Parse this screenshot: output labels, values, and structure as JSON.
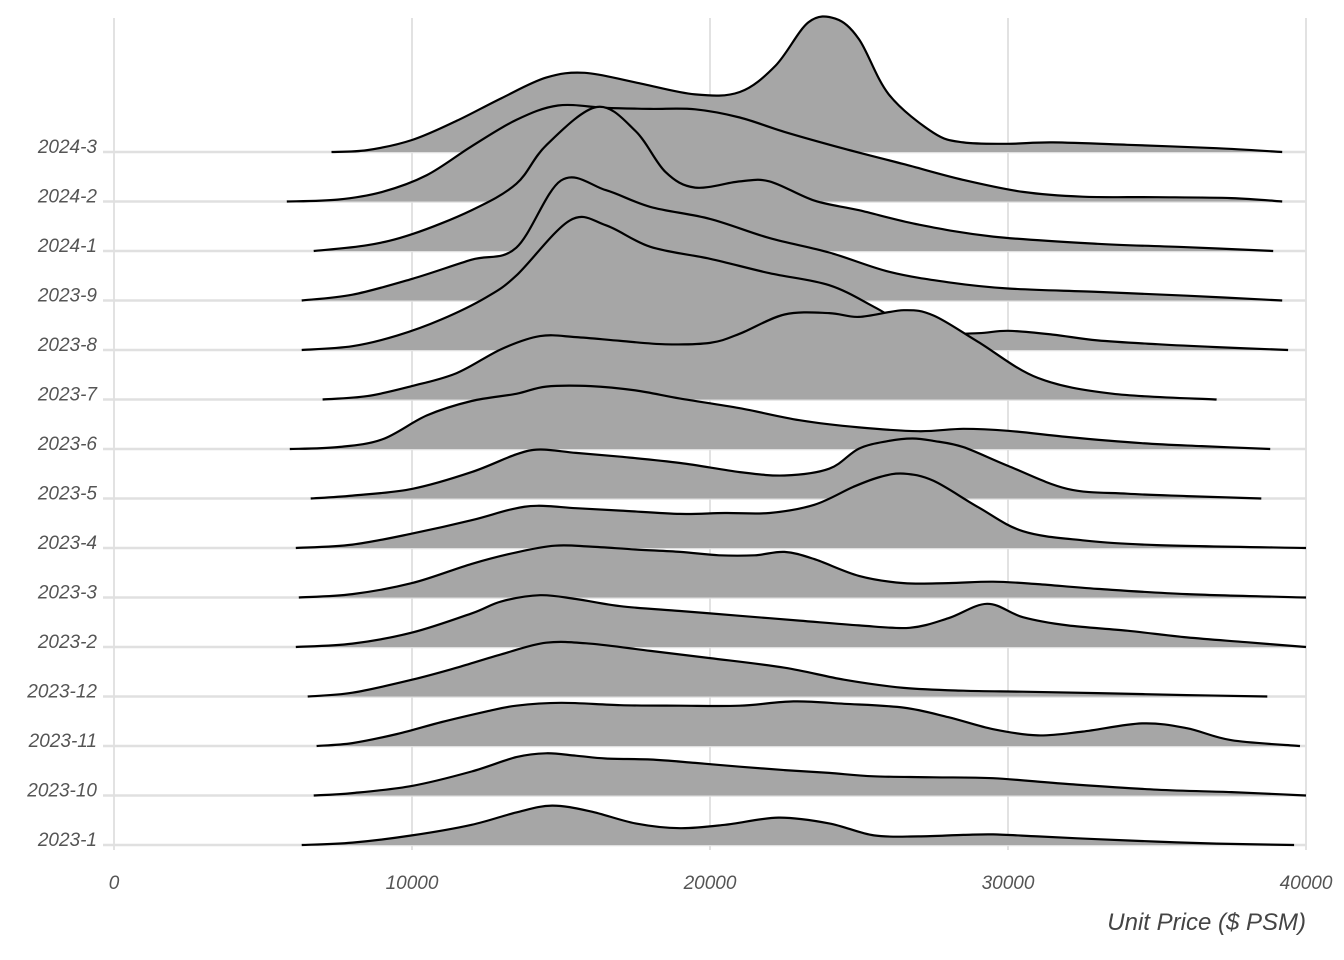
{
  "chart_data": {
    "type": "area",
    "subtype": "ridgeline",
    "title": "",
    "xlabel": "Unit Price ($ PSM)",
    "ylabel": "",
    "xlim": [
      0,
      40000
    ],
    "x_ticks": [
      0,
      10000,
      20000,
      30000,
      40000
    ],
    "grid": true,
    "legend": "none",
    "fill_color": "#a6a6a6",
    "line_color": "#000000",
    "categories": [
      "2023-1",
      "2023-10",
      "2023-11",
      "2023-12",
      "2023-2",
      "2023-3",
      "2023-4",
      "2023-5",
      "2023-6",
      "2023-7",
      "2023-8",
      "2023-9",
      "2024-1",
      "2024-2",
      "2024-3"
    ],
    "series": [
      {
        "name": "2023-1",
        "x": [
          6300,
          8000,
          10000,
          12000,
          13500,
          14700,
          16000,
          17500,
          19000,
          20500,
          22300,
          24000,
          25500,
          27000,
          28500,
          29500,
          31000,
          33000,
          35000,
          37000,
          39600
        ],
        "density": [
          0,
          0.05,
          0.2,
          0.42,
          0.68,
          0.82,
          0.7,
          0.45,
          0.35,
          0.42,
          0.57,
          0.45,
          0.2,
          0.18,
          0.21,
          0.22,
          0.18,
          0.12,
          0.07,
          0.03,
          0
        ]
      },
      {
        "name": "2023-10",
        "x": [
          6700,
          8000,
          10000,
          12000,
          13500,
          14500,
          15500,
          16500,
          18000,
          19500,
          21000,
          22500,
          24000,
          25500,
          27500,
          29500,
          32000,
          35000,
          37500,
          40000
        ],
        "density": [
          0,
          0.05,
          0.2,
          0.5,
          0.8,
          0.88,
          0.83,
          0.77,
          0.75,
          0.68,
          0.6,
          0.53,
          0.47,
          0.4,
          0.38,
          0.36,
          0.24,
          0.12,
          0.07,
          0
        ]
      },
      {
        "name": "2023-11",
        "x": [
          6800,
          8000,
          9500,
          11000,
          12500,
          13500,
          15000,
          17000,
          19000,
          21000,
          22800,
          24500,
          26500,
          28000,
          29500,
          31000,
          32500,
          34500,
          36000,
          37500,
          39800
        ],
        "density": [
          0,
          0.06,
          0.25,
          0.5,
          0.72,
          0.84,
          0.9,
          0.85,
          0.84,
          0.84,
          0.93,
          0.88,
          0.8,
          0.6,
          0.35,
          0.22,
          0.3,
          0.47,
          0.37,
          0.12,
          0
        ]
      },
      {
        "name": "2023-12",
        "x": [
          6500,
          8000,
          10000,
          11500,
          13000,
          14500,
          16000,
          18000,
          20000,
          22500,
          24500,
          26500,
          28500,
          30500,
          33000,
          36000,
          38700
        ],
        "density": [
          0,
          0.08,
          0.35,
          0.6,
          0.88,
          1.12,
          1.1,
          0.95,
          0.8,
          0.6,
          0.35,
          0.18,
          0.12,
          0.1,
          0.07,
          0.03,
          0
        ]
      },
      {
        "name": "2023-2",
        "x": [
          6100,
          8000,
          10000,
          12000,
          13000,
          14300,
          15500,
          17000,
          19000,
          21000,
          23000,
          25000,
          26700,
          28000,
          29300,
          30500,
          32000,
          34000,
          36000,
          38000,
          40000
        ],
        "density": [
          0,
          0.07,
          0.3,
          0.7,
          0.95,
          1.08,
          1.0,
          0.85,
          0.75,
          0.65,
          0.55,
          0.45,
          0.4,
          0.6,
          0.9,
          0.62,
          0.45,
          0.34,
          0.2,
          0.1,
          0
        ]
      },
      {
        "name": "2023-3",
        "x": [
          6200,
          8000,
          10000,
          12000,
          13500,
          14800,
          16000,
          17500,
          19000,
          20300,
          21500,
          22500,
          23500,
          25000,
          26500,
          28000,
          29500,
          31000,
          33000,
          36000,
          40000
        ],
        "density": [
          0,
          0.07,
          0.3,
          0.7,
          0.94,
          1.08,
          1.06,
          1.0,
          0.95,
          0.88,
          0.88,
          0.95,
          0.8,
          0.45,
          0.3,
          0.3,
          0.33,
          0.28,
          0.18,
          0.07,
          0
        ]
      },
      {
        "name": "2023-4",
        "x": [
          6100,
          8000,
          10000,
          12000,
          13300,
          14200,
          15500,
          17000,
          19000,
          20500,
          22000,
          23500,
          24800,
          25700,
          26500,
          27500,
          29000,
          30500,
          32500,
          35000,
          40000
        ],
        "density": [
          0,
          0.07,
          0.3,
          0.58,
          0.8,
          0.88,
          0.83,
          0.78,
          0.71,
          0.73,
          0.73,
          0.9,
          1.27,
          1.48,
          1.55,
          1.4,
          0.85,
          0.35,
          0.16,
          0.06,
          0
        ]
      },
      {
        "name": "2023-5",
        "x": [
          6600,
          8000,
          10000,
          12000,
          13500,
          14300,
          15500,
          17000,
          19000,
          21000,
          22500,
          24000,
          25000,
          26000,
          26800,
          27500,
          28500,
          30000,
          32000,
          34000,
          36000,
          38500
        ],
        "density": [
          0,
          0.06,
          0.2,
          0.55,
          0.92,
          1.02,
          0.95,
          0.87,
          0.74,
          0.55,
          0.48,
          0.62,
          1.04,
          1.2,
          1.25,
          1.2,
          1.07,
          0.68,
          0.2,
          0.1,
          0.05,
          0
        ]
      },
      {
        "name": "2023-6",
        "x": [
          5900,
          7500,
          9000,
          10500,
          12000,
          13500,
          14500,
          16000,
          17500,
          19000,
          21000,
          23000,
          25000,
          27000,
          28500,
          30000,
          32000,
          34500,
          36500,
          38800
        ],
        "density": [
          0,
          0.04,
          0.2,
          0.7,
          1.0,
          1.15,
          1.3,
          1.31,
          1.22,
          1.05,
          0.85,
          0.6,
          0.45,
          0.37,
          0.42,
          0.38,
          0.25,
          0.12,
          0.06,
          0
        ]
      },
      {
        "name": "2023-7",
        "x": [
          7000,
          8500,
          10000,
          11500,
          13000,
          14300,
          15500,
          17000,
          18500,
          20000,
          21000,
          22500,
          24000,
          25000,
          26500,
          27500,
          29000,
          31000,
          33500,
          37000
        ],
        "density": [
          0,
          0.07,
          0.28,
          0.55,
          1.05,
          1.32,
          1.3,
          1.22,
          1.15,
          1.18,
          1.37,
          1.77,
          1.8,
          1.72,
          1.86,
          1.75,
          1.2,
          0.45,
          0.12,
          0
        ]
      },
      {
        "name": "2023-8",
        "x": [
          6300,
          8000,
          9500,
          11000,
          12500,
          13500,
          15300,
          16500,
          18000,
          20000,
          22000,
          24000,
          25500,
          26500,
          27500,
          29000,
          30000,
          31500,
          33000,
          35000,
          37000,
          39400
        ],
        "density": [
          0,
          0.08,
          0.3,
          0.64,
          1.1,
          1.55,
          2.7,
          2.6,
          2.15,
          1.9,
          1.6,
          1.35,
          0.9,
          0.55,
          0.35,
          0.35,
          0.4,
          0.32,
          0.2,
          0.12,
          0.06,
          0
        ]
      },
      {
        "name": "2023-9",
        "x": [
          6300,
          8000,
          10000,
          12000,
          13500,
          15000,
          16500,
          18000,
          20000,
          22000,
          24000,
          26000,
          28000,
          30000,
          33000,
          36000,
          39200
        ],
        "density": [
          0,
          0.12,
          0.45,
          0.85,
          1.1,
          2.5,
          2.3,
          1.95,
          1.7,
          1.3,
          1.0,
          0.6,
          0.38,
          0.25,
          0.18,
          0.1,
          0
        ]
      },
      {
        "name": "2024-1",
        "x": [
          6700,
          8500,
          10000,
          12000,
          13500,
          14500,
          16200,
          17500,
          18500,
          19500,
          21000,
          22000,
          23500,
          25000,
          27000,
          29500,
          33000,
          36000,
          38900
        ],
        "density": [
          0,
          0.12,
          0.35,
          0.85,
          1.4,
          2.2,
          3.0,
          2.5,
          1.65,
          1.32,
          1.45,
          1.45,
          1.05,
          0.85,
          0.55,
          0.3,
          0.15,
          0.08,
          0
        ]
      },
      {
        "name": "2024-2",
        "x": [
          5800,
          7500,
          9000,
          10500,
          12000,
          13500,
          14900,
          16500,
          18000,
          19500,
          21000,
          22500,
          24500,
          26500,
          28500,
          30500,
          32500,
          35000,
          37500,
          39200
        ],
        "density": [
          0,
          0.04,
          0.2,
          0.55,
          1.15,
          1.7,
          2.0,
          1.95,
          1.93,
          1.92,
          1.75,
          1.45,
          1.1,
          0.78,
          0.45,
          0.2,
          0.1,
          0.09,
          0.07,
          0
        ]
      },
      {
        "name": "2024-3",
        "x": [
          7300,
          8500,
          10000,
          11500,
          13000,
          14500,
          15800,
          17500,
          19500,
          21000,
          22200,
          23300,
          24200,
          25000,
          26000,
          27500,
          28500,
          30000,
          31500,
          34000,
          37000,
          39200
        ],
        "density": [
          0,
          0.04,
          0.25,
          0.65,
          1.12,
          1.55,
          1.65,
          1.45,
          1.2,
          1.25,
          1.8,
          2.7,
          2.78,
          2.35,
          1.2,
          0.4,
          0.2,
          0.17,
          0.2,
          0.15,
          0.08,
          0
        ]
      }
    ]
  }
}
